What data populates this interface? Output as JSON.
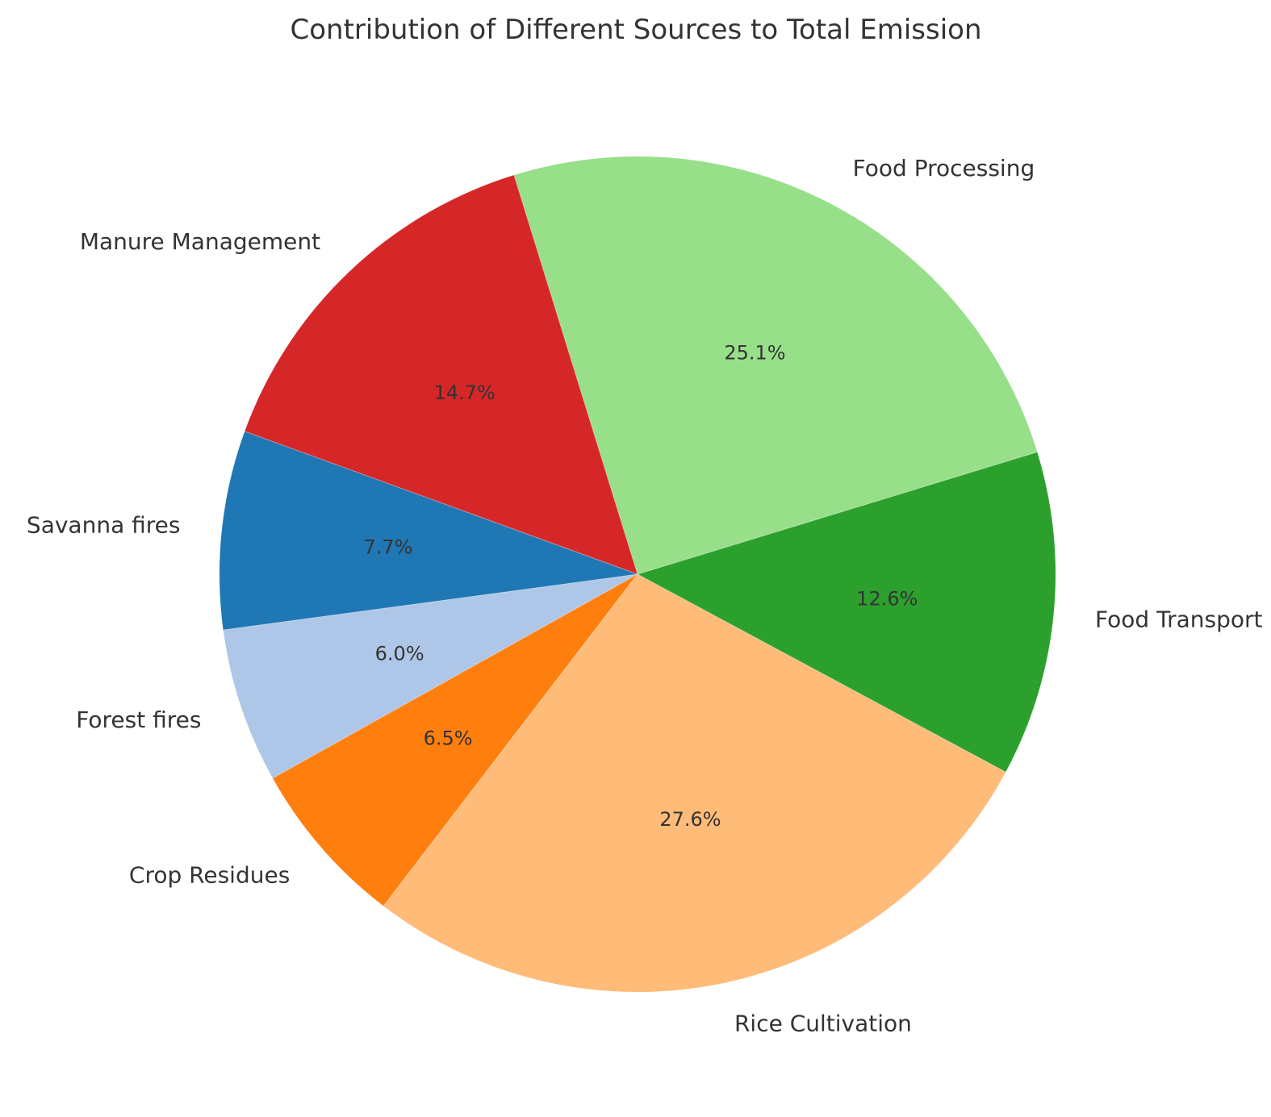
{
  "chart_data": {
    "type": "pie",
    "title": "Contribution of Different Sources to Total Emission",
    "start_angle_deg": 160,
    "direction": "counterclockwise",
    "slices": [
      {
        "label": "Savanna fires",
        "value": 7.7,
        "pct_label": "7.7%",
        "color": "#1f77b4"
      },
      {
        "label": "Forest fires",
        "value": 6.0,
        "pct_label": "6.0%",
        "color": "#aec7e8"
      },
      {
        "label": "Crop Residues",
        "value": 6.5,
        "pct_label": "6.5%",
        "color": "#ff7f0e"
      },
      {
        "label": "Rice Cultivation",
        "value": 27.6,
        "pct_label": "27.6%",
        "color": "#ffbb78"
      },
      {
        "label": "Food Transport",
        "value": 12.6,
        "pct_label": "12.6%",
        "color": "#2ca02c"
      },
      {
        "label": "Food Processing",
        "value": 25.1,
        "pct_label": "25.1%",
        "color": "#98df8a"
      },
      {
        "label": "Manure Management",
        "value": 14.7,
        "pct_label": "14.7%",
        "color": "#d62728"
      }
    ]
  }
}
